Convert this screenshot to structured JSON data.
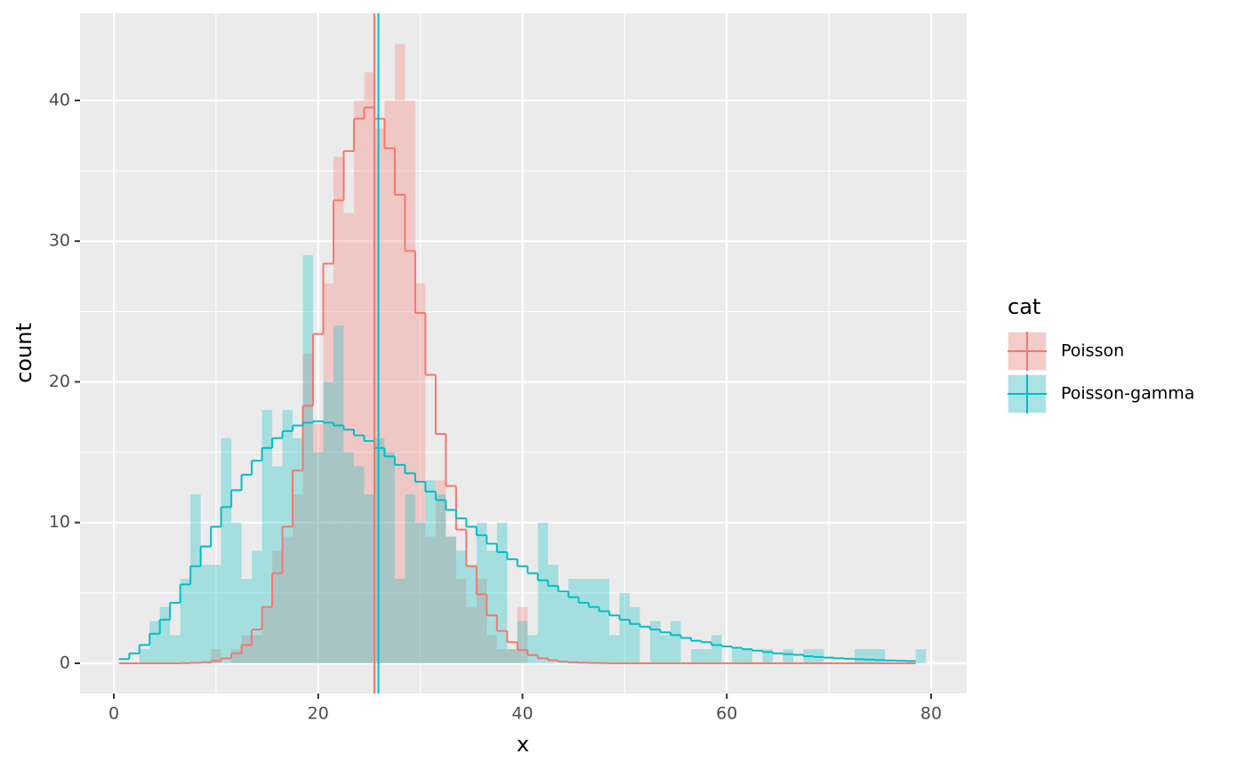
{
  "chart_data": {
    "type": "histogram",
    "x_label": "x",
    "y_label": "count",
    "legend_title": "cat",
    "legend_position": "right",
    "bins": [
      0.5,
      1.5,
      2.5,
      3.5,
      4.5,
      5.5,
      6.5,
      7.5,
      8.5,
      9.5,
      10.5,
      11.5,
      12.5,
      13.5,
      14.5,
      15.5,
      16.5,
      17.5,
      18.5,
      19.5,
      20.5,
      21.5,
      22.5,
      23.5,
      24.5,
      25.5,
      26.5,
      27.5,
      28.5,
      29.5,
      30.5,
      31.5,
      32.5,
      33.5,
      34.5,
      35.5,
      36.5,
      37.5,
      38.5,
      39.5,
      40.5,
      41.5,
      42.5,
      43.5,
      44.5,
      45.5,
      46.5,
      47.5,
      48.5,
      49.5,
      50.5,
      51.5,
      52.5,
      53.5,
      54.5,
      55.5,
      56.5,
      57.5,
      58.5,
      59.5,
      60.5,
      61.5,
      62.5,
      63.5,
      64.5,
      65.5,
      66.5,
      67.5,
      68.5,
      69.5,
      70.5,
      71.5,
      72.5,
      73.5,
      74.5,
      75.5,
      76.5,
      77.5,
      78.5,
      79.5
    ],
    "series": [
      {
        "name": "Poisson",
        "color": "#F8766D",
        "values": [
          0,
          0,
          0,
          0,
          0,
          0,
          0,
          0,
          0,
          1,
          0,
          1,
          2,
          2,
          4,
          8,
          9,
          12,
          22,
          17,
          27,
          36,
          32,
          40,
          42,
          38,
          40,
          44,
          40,
          27,
          9,
          13,
          9,
          6,
          4,
          6,
          2,
          1,
          1,
          4,
          0,
          0,
          0,
          0,
          0,
          0,
          0,
          0,
          0,
          0,
          0,
          0,
          0,
          0,
          0,
          0,
          0,
          0,
          0,
          0,
          0,
          0,
          0,
          0,
          0,
          0,
          0,
          0,
          0,
          0,
          0,
          0,
          0,
          0,
          0,
          0,
          0,
          0,
          0
        ],
        "step_values": [
          0,
          0,
          0,
          0,
          0,
          0,
          0.01,
          0.03,
          0.07,
          0.16,
          0.35,
          0.7,
          1.3,
          2.4,
          4.0,
          6.4,
          9.7,
          13.7,
          18.3,
          23.4,
          28.4,
          32.9,
          36.4,
          38.7,
          39.5,
          38.7,
          36.6,
          33.3,
          29.3,
          24.9,
          20.5,
          16.3,
          12.6,
          9.5,
          6.9,
          4.9,
          3.4,
          2.3,
          1.5,
          0.94,
          0.58,
          0.35,
          0.21,
          0.12,
          0.07,
          0.04,
          0.02,
          0.01,
          0,
          0,
          0,
          0,
          0,
          0,
          0,
          0,
          0,
          0,
          0,
          0,
          0,
          0,
          0,
          0,
          0,
          0,
          0,
          0,
          0,
          0,
          0,
          0,
          0,
          0,
          0,
          0,
          0,
          0
        ],
        "mean": 25.5
      },
      {
        "name": "Poisson-gamma",
        "color": "#00BFC4",
        "values": [
          0,
          0,
          1,
          3,
          4,
          2,
          6,
          12,
          7,
          7,
          16,
          10,
          6,
          8,
          18,
          14,
          18,
          16,
          29,
          15,
          20,
          24,
          15,
          14,
          12,
          16,
          15,
          6,
          12,
          10,
          13,
          12,
          9,
          8,
          7,
          10,
          8,
          10,
          1,
          3,
          2,
          10,
          7,
          5,
          6,
          6,
          6,
          6,
          2,
          5,
          4,
          0,
          3,
          2,
          3,
          0,
          1,
          1,
          2,
          0,
          1,
          1,
          0,
          1,
          0,
          1,
          0,
          1,
          1,
          0,
          0,
          0,
          1,
          1,
          1,
          0,
          0,
          0,
          1
        ],
        "step_values": [
          0.3,
          0.7,
          1.3,
          2.1,
          3.1,
          4.3,
          5.6,
          6.9,
          8.3,
          9.7,
          11.1,
          12.3,
          13.4,
          14.4,
          15.3,
          16.0,
          16.5,
          16.9,
          17.1,
          17.2,
          17.1,
          16.9,
          16.6,
          16.2,
          15.8,
          15.3,
          14.7,
          14.1,
          13.5,
          12.9,
          12.2,
          11.6,
          10.9,
          10.3,
          9.7,
          9.1,
          8.5,
          7.9,
          7.4,
          6.9,
          6.4,
          5.9,
          5.5,
          5.1,
          4.7,
          4.3,
          4.0,
          3.7,
          3.4,
          3.1,
          2.8,
          2.6,
          2.4,
          2.2,
          2.0,
          1.8,
          1.6,
          1.5,
          1.3,
          1.2,
          1.1,
          1.0,
          0.9,
          0.8,
          0.7,
          0.65,
          0.6,
          0.5,
          0.45,
          0.4,
          0.36,
          0.32,
          0.29,
          0.26,
          0.23,
          0.2,
          0.18,
          0.16
        ],
        "mean": 25.9
      }
    ],
    "step_x": [
      1,
      2,
      3,
      4,
      5,
      6,
      7,
      8,
      9,
      10,
      11,
      12,
      13,
      14,
      15,
      16,
      17,
      18,
      19,
      20,
      21,
      22,
      23,
      24,
      25,
      26,
      27,
      28,
      29,
      30,
      31,
      32,
      33,
      34,
      35,
      36,
      37,
      38,
      39,
      40,
      41,
      42,
      43,
      44,
      45,
      46,
      47,
      48,
      49,
      50,
      51,
      52,
      53,
      54,
      55,
      56,
      57,
      58,
      59,
      60,
      61,
      62,
      63,
      64,
      65,
      66,
      67,
      68,
      69,
      70,
      71,
      72,
      73,
      74,
      75,
      76,
      77,
      78
    ],
    "xlim": [
      -3.31,
      83.48
    ],
    "ylim": [
      -2.15,
      46.19
    ],
    "xticks": [
      0,
      20,
      40,
      60,
      80
    ],
    "yticks": [
      0,
      10,
      20,
      30,
      40
    ],
    "xminor": [
      10,
      30,
      50,
      70
    ],
    "yminor": [
      5,
      15,
      25,
      35
    ],
    "grid": true,
    "fill_opacity": 0.3
  }
}
